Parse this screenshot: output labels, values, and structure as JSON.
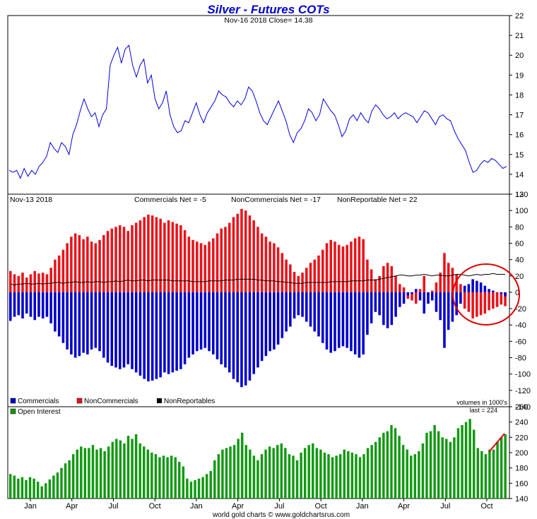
{
  "title": "Silver - Futures COTs",
  "title_color": "#0000cc",
  "footer": "world gold charts © www.goldchartsrus.com",
  "colors": {
    "price": "#0000dd",
    "commercials": "#0000cc",
    "noncommercials": "#e8141a",
    "nonreportables": "#000000",
    "open_interest": "#119911",
    "annotation": "#dd0000"
  },
  "chart_data": [
    {
      "type": "line",
      "subtitle": "Nov-16  2018   Close= 14.38",
      "ylim": [
        13,
        22
      ],
      "yticks": [
        13,
        14,
        15,
        16,
        17,
        18,
        19,
        20,
        21,
        22
      ],
      "x_labels": [
        "Jan",
        "Apr",
        "Jul",
        "Oct",
        "Jan",
        "Apr",
        "Jul",
        "Oct",
        "Jan",
        "Apr",
        "Jul",
        "Oct"
      ],
      "series": [
        {
          "values": [
            14.2,
            14.1,
            14.2,
            13.8,
            14.3,
            13.9,
            14.2,
            14.0,
            14.4,
            14.6,
            14.9,
            15.6,
            15.3,
            15.1,
            15.6,
            15.4,
            15.0,
            16.0,
            16.5,
            17.2,
            17.8,
            17.3,
            16.9,
            17.1,
            16.4,
            17.0,
            17.3,
            19.5,
            20.0,
            20.4,
            19.6,
            20.3,
            20.5,
            19.5,
            18.9,
            19.5,
            19.8,
            18.6,
            19.0,
            17.8,
            17.3,
            17.6,
            18.2,
            17.0,
            16.4,
            16.1,
            16.2,
            16.7,
            16.6,
            17.1,
            17.6,
            17.0,
            16.6,
            17.1,
            17.4,
            17.7,
            18.2,
            18.0,
            17.9,
            17.6,
            17.4,
            17.7,
            17.5,
            17.8,
            18.4,
            18.2,
            17.7,
            17.1,
            16.7,
            16.5,
            16.9,
            17.3,
            17.7,
            17.2,
            16.7,
            16.0,
            15.6,
            16.1,
            16.3,
            16.7,
            17.3,
            17.1,
            16.7,
            17.0,
            17.8,
            17.5,
            17.2,
            17.0,
            16.5,
            15.9,
            16.2,
            16.8,
            17.0,
            16.7,
            17.1,
            16.8,
            16.6,
            17.2,
            17.5,
            17.3,
            17.0,
            16.8,
            16.9,
            17.1,
            16.8,
            17.0,
            17.1,
            17.0,
            16.9,
            16.6,
            16.9,
            17.2,
            17.1,
            16.8,
            16.5,
            16.9,
            17.0,
            16.8,
            16.7,
            16.2,
            15.8,
            15.5,
            15.2,
            14.6,
            14.1,
            14.2,
            14.5,
            14.7,
            14.6,
            14.8,
            14.7,
            14.5,
            14.3,
            14.4
          ]
        }
      ]
    },
    {
      "type": "bar",
      "date_label": "Nov-13  2018",
      "header": [
        "Commercials Net = -5",
        "NonCommercials Net = -17",
        "NonReportable Net = 22"
      ],
      "ylim": [
        -140,
        120
      ],
      "yticks": [
        120,
        100,
        80,
        60,
        40,
        20,
        0,
        -20,
        -40,
        -60,
        -80,
        -100,
        -120,
        -140
      ],
      "legend": [
        "Commercials",
        "NonCommercials",
        "NonReportables"
      ],
      "units_note": "volumes in 1000's",
      "series": [
        {
          "name": "NonCommercials",
          "values": [
            26,
            22,
            20,
            24,
            18,
            22,
            26,
            23,
            24,
            22,
            30,
            40,
            45,
            52,
            60,
            68,
            72,
            70,
            65,
            68,
            62,
            60,
            64,
            70,
            75,
            78,
            80,
            82,
            80,
            75,
            82,
            85,
            88,
            92,
            95,
            94,
            92,
            90,
            85,
            88,
            86,
            84,
            82,
            76,
            68,
            64,
            62,
            60,
            58,
            62,
            66,
            72,
            78,
            80,
            85,
            92,
            96,
            102,
            100,
            94,
            88,
            80,
            72,
            68,
            62,
            60,
            55,
            48,
            40,
            34,
            25,
            20,
            24,
            30,
            36,
            40,
            45,
            52,
            60,
            64,
            62,
            58,
            56,
            58,
            62,
            66,
            68,
            65,
            40,
            28,
            16,
            20,
            32,
            36,
            32,
            20,
            10,
            6,
            -8,
            -10,
            -14,
            4,
            20,
            -4,
            2,
            12,
            24,
            48,
            36,
            30,
            22,
            10,
            -20,
            -24,
            -32,
            -30,
            -28,
            -26,
            -22,
            -20,
            -18,
            -15,
            -17
          ]
        },
        {
          "name": "Commercials",
          "values": [
            -35,
            -30,
            -28,
            -32,
            -26,
            -30,
            -34,
            -30,
            -32,
            -30,
            -38,
            -48,
            -54,
            -62,
            -70,
            -76,
            -80,
            -78,
            -74,
            -76,
            -70,
            -68,
            -72,
            -80,
            -86,
            -90,
            -92,
            -94,
            -92,
            -88,
            -94,
            -98,
            -102,
            -106,
            -109,
            -108,
            -106,
            -104,
            -98,
            -100,
            -98,
            -96,
            -94,
            -88,
            -80,
            -76,
            -72,
            -70,
            -68,
            -72,
            -76,
            -82,
            -88,
            -92,
            -98,
            -106,
            -110,
            -116,
            -114,
            -108,
            -100,
            -92,
            -84,
            -78,
            -72,
            -70,
            -64,
            -56,
            -48,
            -42,
            -32,
            -28,
            -30,
            -36,
            -42,
            -48,
            -54,
            -62,
            -70,
            -74,
            -72,
            -68,
            -66,
            -68,
            -72,
            -76,
            -80,
            -76,
            -52,
            -38,
            -24,
            -28,
            -40,
            -44,
            -40,
            -30,
            -18,
            -14,
            -4,
            -2,
            4,
            -10,
            -26,
            -14,
            -10,
            -24,
            -34,
            -68,
            -46,
            -36,
            -28,
            -14,
            8,
            10,
            16,
            14,
            12,
            8,
            4,
            2,
            0,
            -2,
            -5
          ]
        },
        {
          "name": "NonReportables",
          "values": [
            10,
            9,
            10,
            10,
            11,
            10,
            10,
            11,
            10,
            11,
            11,
            12,
            12,
            11,
            12,
            12,
            13,
            12,
            12,
            13,
            12,
            13,
            13,
            12,
            13,
            13,
            14,
            13,
            14,
            15,
            14,
            14,
            15,
            15,
            14,
            15,
            15,
            15,
            15,
            15,
            14,
            14,
            14,
            14,
            14,
            13,
            13,
            13,
            13,
            14,
            14,
            14,
            14,
            15,
            15,
            15,
            16,
            16,
            16,
            16,
            16,
            15,
            15,
            14,
            14,
            14,
            13,
            13,
            12,
            12,
            11,
            11,
            11,
            12,
            12,
            12,
            12,
            12,
            12,
            13,
            13,
            13,
            13,
            13,
            14,
            14,
            14,
            14,
            15,
            15,
            15,
            16,
            17,
            18,
            19,
            20,
            21,
            21,
            20,
            20,
            21,
            21,
            22,
            21,
            20,
            21,
            21,
            20,
            20,
            21,
            22,
            22,
            21,
            20,
            21,
            22,
            21,
            22,
            22,
            23,
            22,
            22,
            22
          ]
        }
      ]
    },
    {
      "type": "bar",
      "legend": [
        "Open Interest"
      ],
      "last_label": "last = 224",
      "ylim": [
        140,
        260
      ],
      "yticks": [
        140,
        160,
        180,
        200,
        220,
        240,
        260
      ],
      "series": [
        {
          "name": "Open Interest",
          "values": [
            172,
            170,
            166,
            168,
            164,
            168,
            166,
            162,
            156,
            160,
            165,
            170,
            174,
            180,
            186,
            190,
            198,
            204,
            208,
            206,
            206,
            210,
            204,
            206,
            202,
            208,
            214,
            218,
            216,
            212,
            222,
            218,
            224,
            212,
            208,
            204,
            200,
            198,
            194,
            196,
            194,
            196,
            194,
            188,
            182,
            166,
            162,
            164,
            166,
            168,
            172,
            176,
            190,
            198,
            204,
            206,
            208,
            210,
            218,
            226,
            210,
            204,
            196,
            190,
            198,
            204,
            208,
            206,
            210,
            212,
            206,
            198,
            196,
            190,
            200,
            206,
            210,
            212,
            206,
            204,
            200,
            198,
            194,
            196,
            198,
            204,
            202,
            200,
            198,
            194,
            198,
            206,
            210,
            214,
            220,
            226,
            228,
            236,
            232,
            222,
            210,
            204,
            196,
            198,
            202,
            212,
            226,
            228,
            236,
            228,
            220,
            218,
            214,
            220,
            232,
            236,
            240,
            244,
            230,
            206,
            202,
            198,
            204,
            204,
            214,
            220,
            224
          ]
        }
      ],
      "x_labels": [
        "Jan",
        "Apr",
        "Jul",
        "Oct",
        "Jan",
        "Apr",
        "Jul",
        "Oct",
        "Jan",
        "Apr",
        "Jul",
        "Oct"
      ]
    }
  ]
}
